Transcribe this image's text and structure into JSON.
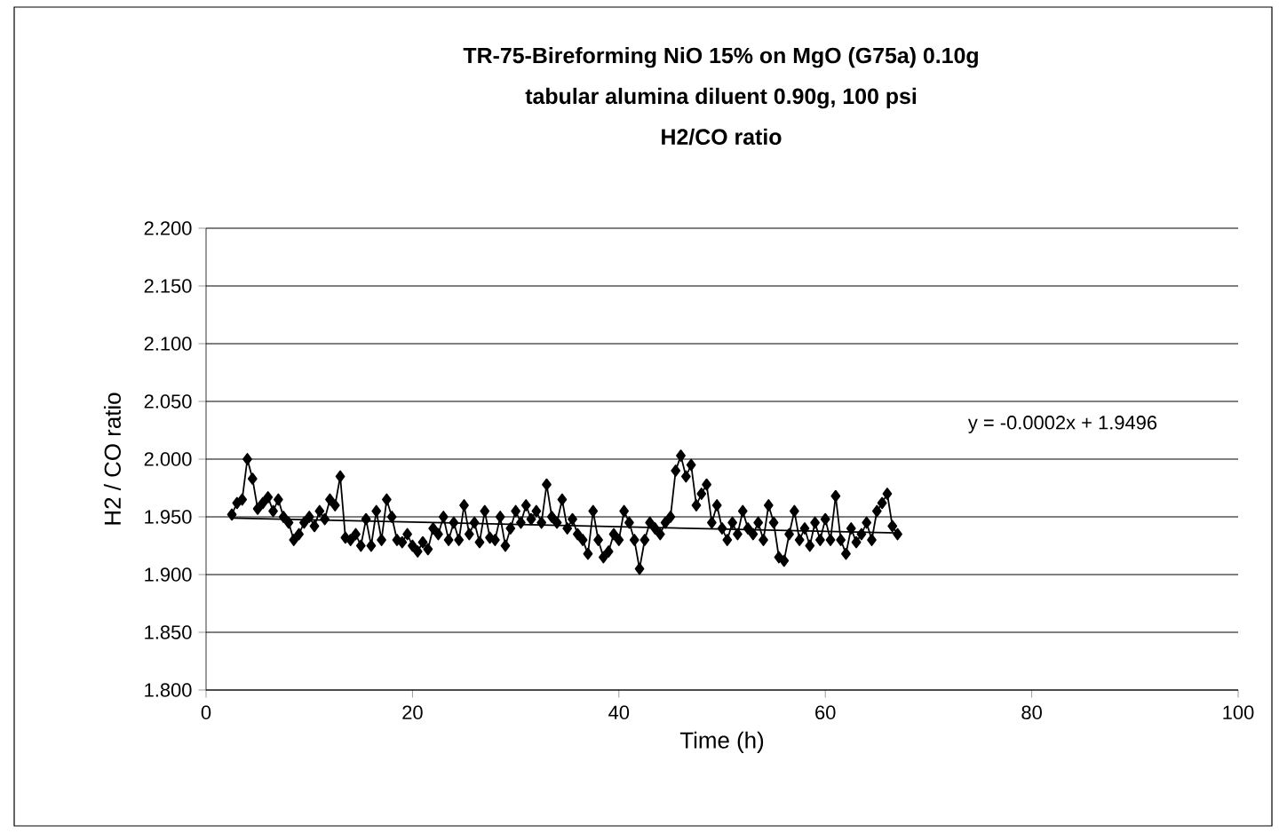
{
  "chart_data": {
    "type": "line",
    "title": "TR-75-Bireforming NiO 15% on MgO (G75a) 0.10g",
    "subtitle": "tabular alumina diluent 0.90g, 100 psi",
    "annotations": [
      "H2/CO ratio",
      "y = -0.0002x + 1.9496"
    ],
    "xlabel": "Time (h)",
    "ylabel": "H2 / CO ratio",
    "xlim": [
      0,
      100
    ],
    "xticks": [
      0,
      20,
      40,
      60,
      80,
      100
    ],
    "ylim": [
      1.8,
      2.2
    ],
    "yticks": [
      {
        "value": 1.8,
        "label": "1.800"
      },
      {
        "value": 1.85,
        "label": "1.850"
      },
      {
        "value": 1.9,
        "label": "1.900"
      },
      {
        "value": 1.95,
        "label": "1.950"
      },
      {
        "value": 2.0,
        "label": "2.000"
      },
      {
        "value": 2.05,
        "label": "2.050"
      },
      {
        "value": 2.1,
        "label": "2.100"
      },
      {
        "value": 2.15,
        "label": "2.150"
      },
      {
        "value": 2.2,
        "label": "2.200"
      }
    ],
    "grid": "y",
    "series": [
      {
        "color": "#000000",
        "marker": "diamond",
        "x": [
          2.5,
          3,
          3.5,
          4,
          4.5,
          5,
          5.5,
          6,
          6.5,
          7,
          7.5,
          8,
          8.5,
          9,
          9.5,
          10,
          10.5,
          11,
          11.5,
          12,
          12.5,
          13,
          13.5,
          14,
          14.5,
          15,
          15.5,
          16,
          16.5,
          17,
          17.5,
          18,
          18.5,
          19,
          19.5,
          20,
          20.5,
          21,
          21.5,
          22,
          22.5,
          23,
          23.5,
          24,
          24.5,
          25,
          25.5,
          26,
          26.5,
          27,
          27.5,
          28,
          28.5,
          29,
          29.5,
          30,
          30.5,
          31,
          31.5,
          32,
          32.5,
          33,
          33.5,
          34,
          34.5,
          35,
          35.5,
          36,
          36.5,
          37,
          37.5,
          38,
          38.5,
          39,
          39.5,
          40,
          40.5,
          41,
          41.5,
          42,
          42.5,
          43,
          43.5,
          44,
          44.5,
          45,
          45.5,
          46,
          46.5,
          47,
          47.5,
          48,
          48.5,
          49,
          49.5,
          50,
          50.5,
          51,
          51.5,
          52,
          52.5,
          53,
          53.5,
          54,
          54.5,
          55,
          55.5,
          56,
          56.5,
          57,
          57.5,
          58,
          58.5,
          59,
          59.5,
          60,
          60.5,
          61,
          61.5,
          62,
          62.5,
          63,
          63.5,
          64,
          64.5,
          65,
          65.5,
          66,
          66.5,
          67
        ],
        "values": [
          1.952,
          1.962,
          1.965,
          2.0,
          1.983,
          1.957,
          1.962,
          1.967,
          1.955,
          1.965,
          1.95,
          1.945,
          1.93,
          1.935,
          1.945,
          1.95,
          1.942,
          1.955,
          1.948,
          1.965,
          1.96,
          1.985,
          1.932,
          1.93,
          1.935,
          1.925,
          1.948,
          1.925,
          1.955,
          1.93,
          1.965,
          1.95,
          1.93,
          1.928,
          1.935,
          1.925,
          1.92,
          1.928,
          1.922,
          1.94,
          1.935,
          1.95,
          1.93,
          1.945,
          1.93,
          1.96,
          1.935,
          1.945,
          1.928,
          1.955,
          1.932,
          1.93,
          1.95,
          1.925,
          1.94,
          1.955,
          1.945,
          1.96,
          1.948,
          1.955,
          1.945,
          1.978,
          1.95,
          1.945,
          1.965,
          1.94,
          1.948,
          1.935,
          1.93,
          1.918,
          1.955,
          1.93,
          1.915,
          1.92,
          1.935,
          1.93,
          1.955,
          1.945,
          1.93,
          1.905,
          1.93,
          1.945,
          1.94,
          1.935,
          1.945,
          1.95,
          1.99,
          2.003,
          1.985,
          1.995,
          1.96,
          1.97,
          1.978,
          1.945,
          1.96,
          1.94,
          1.93,
          1.945,
          1.935,
          1.955,
          1.94,
          1.935,
          1.945,
          1.93,
          1.96,
          1.945,
          1.915,
          1.912,
          1.935,
          1.955,
          1.93,
          1.94,
          1.925,
          1.945,
          1.93,
          1.948,
          1.93,
          1.968,
          1.93,
          1.918,
          1.94,
          1.928,
          1.935,
          1.945,
          1.93,
          1.955,
          1.962,
          1.97,
          1.942,
          1.935
        ]
      },
      {
        "color": "#000000",
        "marker": "none",
        "x": [
          2.5,
          67
        ],
        "values": [
          1.949,
          1.936
        ]
      }
    ]
  }
}
